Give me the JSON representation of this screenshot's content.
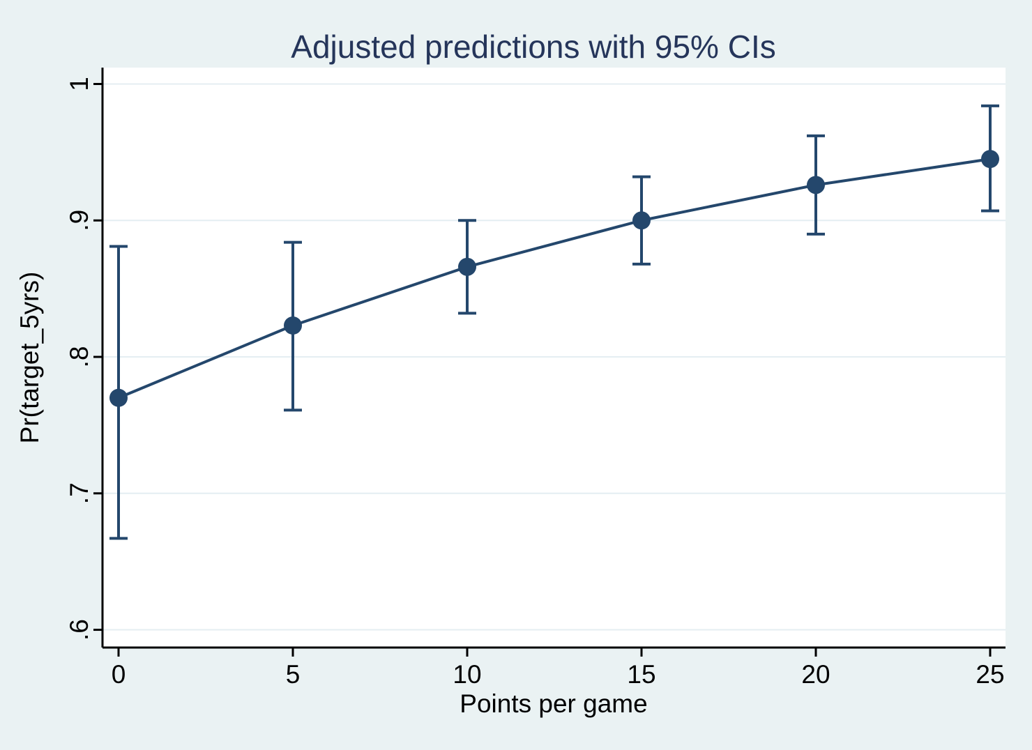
{
  "chart_data": {
    "type": "line",
    "title": "Adjusted predictions with 95% CIs",
    "xlabel": "Points per game",
    "ylabel": "Pr(target_5yrs)",
    "x": [
      0,
      5,
      10,
      15,
      20,
      25
    ],
    "series": [
      {
        "name": "Adjusted prediction",
        "values": [
          0.77,
          0.823,
          0.866,
          0.9,
          0.926,
          0.945
        ],
        "ci_low": [
          0.667,
          0.761,
          0.832,
          0.868,
          0.89,
          0.907
        ],
        "ci_high": [
          0.881,
          0.884,
          0.9,
          0.932,
          0.962,
          0.984
        ]
      }
    ],
    "x_ticks": {
      "values": [
        0,
        5,
        10,
        15,
        20,
        25
      ],
      "labels": [
        "0",
        "5",
        "10",
        "15",
        "20",
        "25"
      ]
    },
    "y_ticks": {
      "values": [
        0.6,
        0.7,
        0.8,
        0.9,
        1.0
      ],
      "labels": [
        ".6",
        ".7",
        ".8",
        ".9",
        "1"
      ]
    },
    "xlim": [
      -0.46,
      25.44
    ],
    "ylim": [
      0.587,
      1.012
    ],
    "grid": true,
    "legend": "none",
    "colors": {
      "series": "#24476c",
      "title": "#25355a",
      "background": "#eaf2f3",
      "plot_background": "#ffffff",
      "gridline": "#e4eef2",
      "axis": "#000000"
    }
  }
}
